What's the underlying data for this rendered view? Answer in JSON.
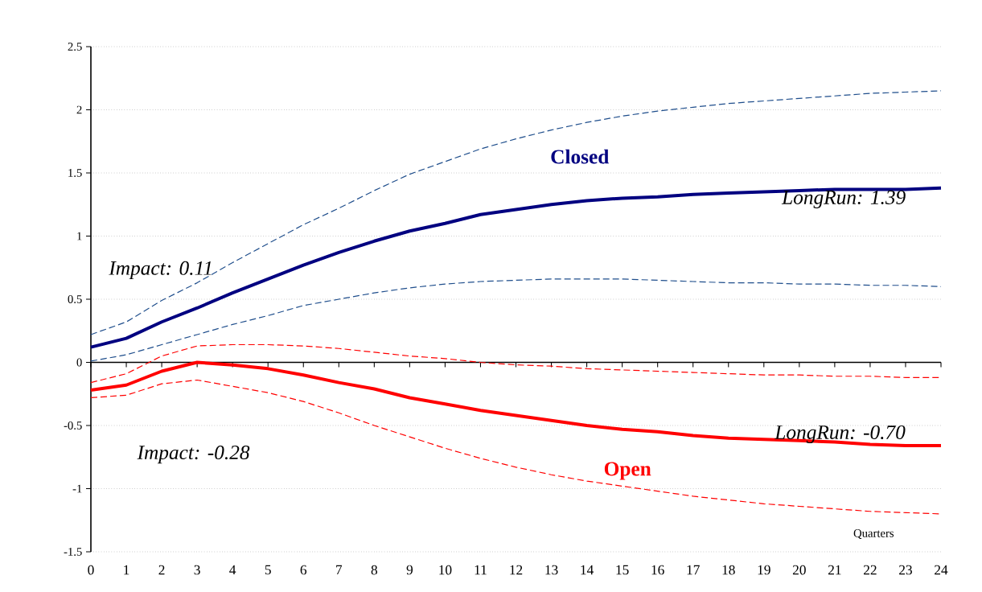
{
  "chart_data": {
    "type": "line",
    "xlabel": "Quarters",
    "x": [
      0,
      1,
      2,
      3,
      4,
      5,
      6,
      7,
      8,
      9,
      10,
      11,
      12,
      13,
      14,
      15,
      16,
      17,
      18,
      19,
      20,
      21,
      22,
      23,
      24
    ],
    "series": [
      {
        "name": "Closed",
        "color": "#000080",
        "line_style": "solid",
        "values": [
          0.12,
          0.19,
          0.32,
          0.43,
          0.55,
          0.66,
          0.77,
          0.87,
          0.96,
          1.04,
          1.1,
          1.17,
          1.21,
          1.25,
          1.28,
          1.3,
          1.31,
          1.33,
          1.34,
          1.35,
          1.36,
          1.37,
          1.37,
          1.37,
          1.38
        ]
      },
      {
        "color": "#1f4e8c",
        "line_style": "dashed",
        "values": [
          0.22,
          0.32,
          0.49,
          0.63,
          0.79,
          0.94,
          1.09,
          1.22,
          1.36,
          1.49,
          1.59,
          1.69,
          1.77,
          1.84,
          1.9,
          1.95,
          1.99,
          2.02,
          2.05,
          2.07,
          2.09,
          2.11,
          2.13,
          2.14,
          2.15
        ]
      },
      {
        "color": "#1f4e8c",
        "line_style": "dashed",
        "values": [
          0.01,
          0.06,
          0.14,
          0.22,
          0.3,
          0.37,
          0.45,
          0.5,
          0.55,
          0.59,
          0.62,
          0.64,
          0.65,
          0.66,
          0.66,
          0.66,
          0.65,
          0.64,
          0.63,
          0.63,
          0.62,
          0.62,
          0.61,
          0.61,
          0.6
        ]
      },
      {
        "name": "Open",
        "color": "#ff0000",
        "line_style": "solid",
        "values": [
          -0.22,
          -0.18,
          -0.07,
          0.0,
          -0.02,
          -0.05,
          -0.1,
          -0.16,
          -0.21,
          -0.28,
          -0.33,
          -0.38,
          -0.42,
          -0.46,
          -0.5,
          -0.53,
          -0.55,
          -0.58,
          -0.6,
          -0.61,
          -0.62,
          -0.63,
          -0.65,
          -0.66,
          -0.66
        ]
      },
      {
        "color": "#ff0000",
        "line_style": "dashed",
        "values": [
          -0.16,
          -0.09,
          0.05,
          0.13,
          0.14,
          0.14,
          0.13,
          0.11,
          0.08,
          0.05,
          0.03,
          0.0,
          -0.02,
          -0.03,
          -0.05,
          -0.06,
          -0.07,
          -0.08,
          -0.09,
          -0.1,
          -0.1,
          -0.11,
          -0.11,
          -0.12,
          -0.12
        ]
      },
      {
        "color": "#ff0000",
        "line_style": "dashed",
        "values": [
          -0.28,
          -0.26,
          -0.17,
          -0.14,
          -0.19,
          -0.24,
          -0.31,
          -0.4,
          -0.5,
          -0.59,
          -0.68,
          -0.76,
          -0.83,
          -0.89,
          -0.94,
          -0.98,
          -1.02,
          -1.06,
          -1.09,
          -1.12,
          -1.14,
          -1.16,
          -1.18,
          -1.19,
          -1.2
        ]
      }
    ],
    "annotations": [
      "Impact: 0.11",
      "*LongRun: 1.39*",
      "Impact: -0.28",
      "*LongRun: -0.70*"
    ],
    "xlim": [
      0,
      24
    ],
    "xticks": [
      0,
      1,
      2,
      3,
      4,
      5,
      6,
      7,
      8,
      9,
      10,
      11,
      12,
      13,
      14,
      15,
      16,
      17,
      18,
      19,
      20,
      21,
      22,
      23,
      24
    ],
    "ylim": [
      -1.5,
      2.5
    ],
    "yticks": [
      -1.5,
      -1,
      -0.5,
      0,
      0.5,
      1,
      1.5,
      2,
      2.5
    ],
    "grid": "y"
  }
}
